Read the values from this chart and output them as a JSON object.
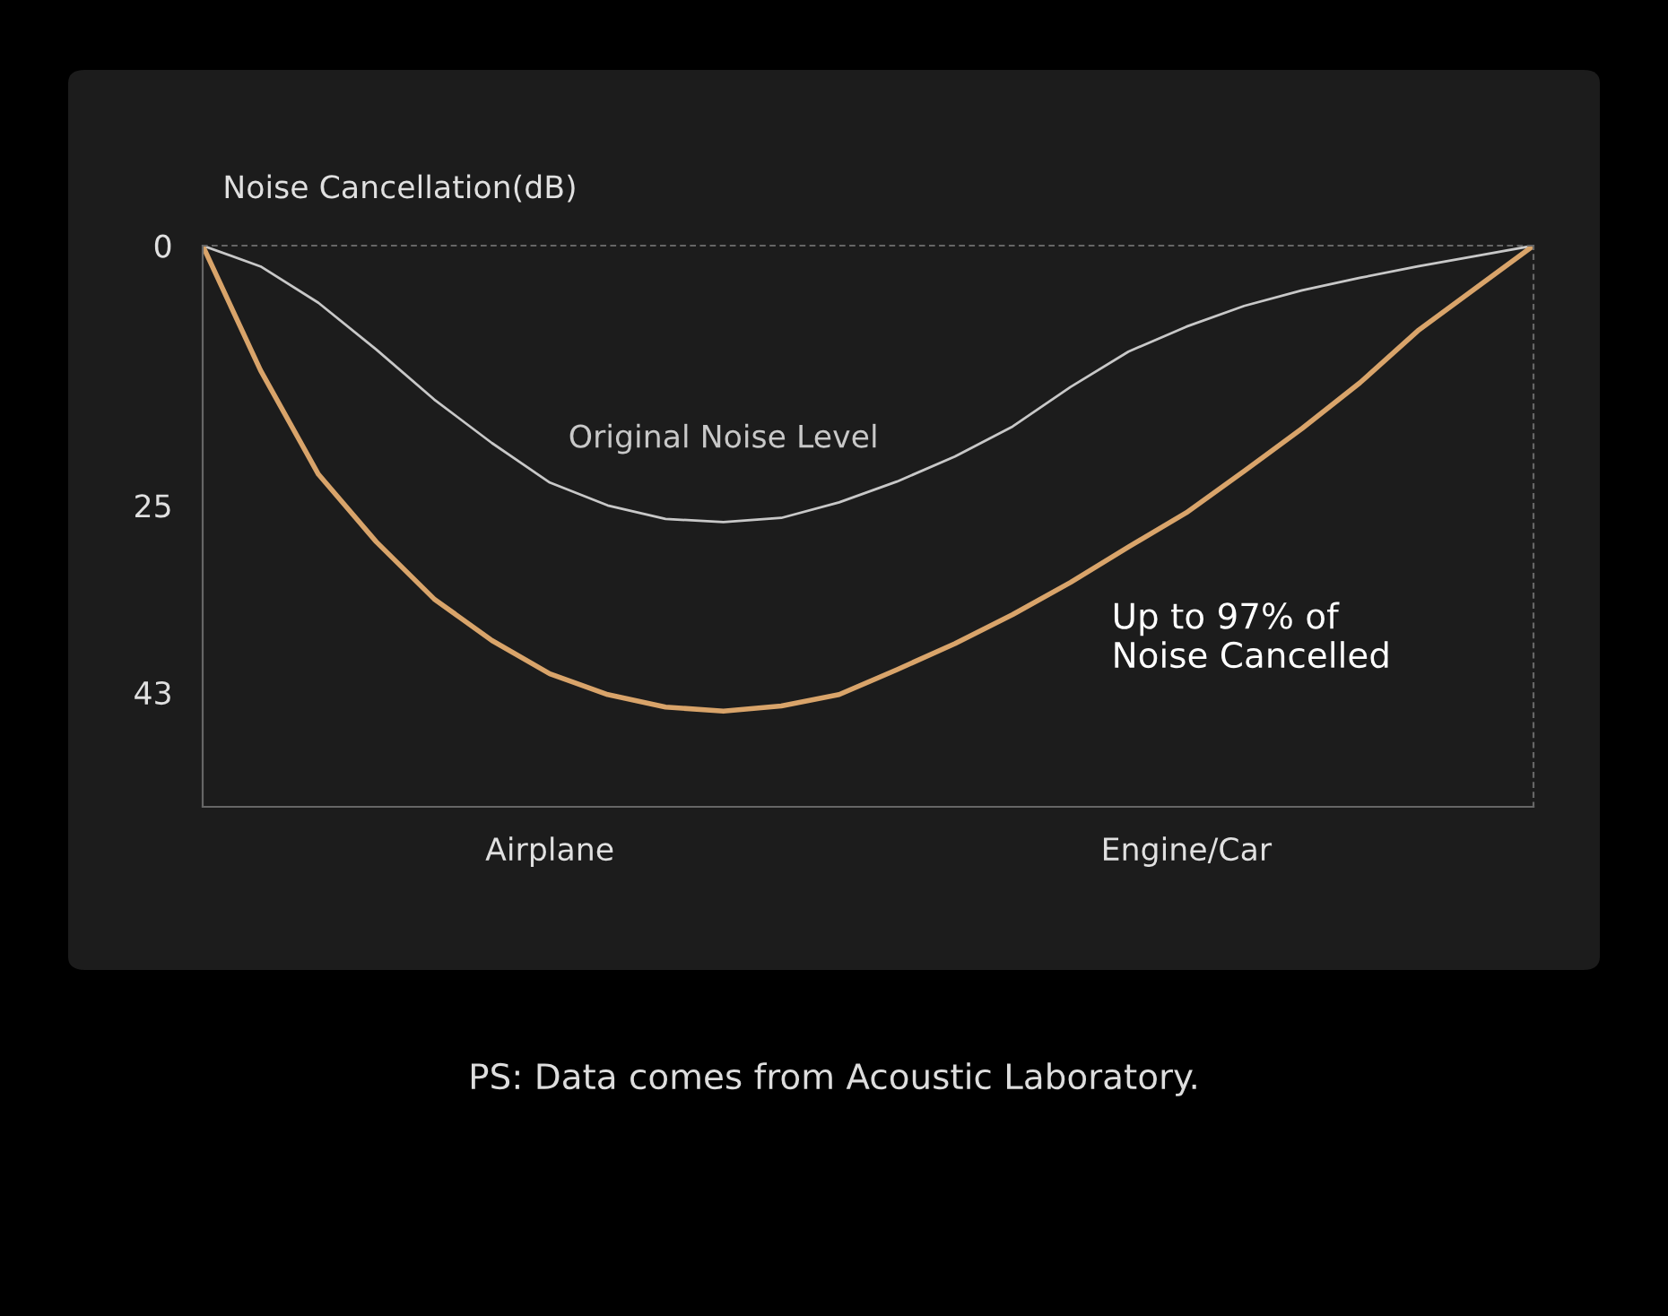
{
  "chart_data": {
    "type": "line",
    "ylabel": "Noise Cancellation(dB)",
    "categories": [
      null,
      null,
      null,
      null,
      null,
      null,
      "Airplane",
      null,
      null,
      null,
      null,
      null,
      null,
      null,
      null,
      null,
      null,
      "Engine/Car",
      null,
      null,
      null,
      null,
      null,
      null
    ],
    "ylim": [
      54,
      0
    ],
    "yticks": [
      0,
      25,
      43
    ],
    "series": [
      {
        "name": "Original Noise Level",
        "color": "#c8c8c8",
        "values": [
          0,
          2,
          5.5,
          10,
          14.8,
          19,
          22.8,
          25,
          26.3,
          26.6,
          26.2,
          24.7,
          22.7,
          20.3,
          17.4,
          13.6,
          10.2,
          7.8,
          5.8,
          4.3,
          3.1,
          2,
          1,
          0
        ]
      },
      {
        "color": "#d9a46a",
        "values": [
          0,
          12,
          22,
          28.5,
          34,
          38,
          41.2,
          43.2,
          44.4,
          44.8,
          44.3,
          43.2,
          40.8,
          38.3,
          35.5,
          32.4,
          29,
          25.7,
          21.7,
          17.6,
          13.2,
          8.2,
          4.1,
          0
        ]
      }
    ],
    "annotations": [
      "Up to 97% of\nNoise Cancelled",
      "PS: Data comes from Acoustic Laboratory."
    ]
  }
}
